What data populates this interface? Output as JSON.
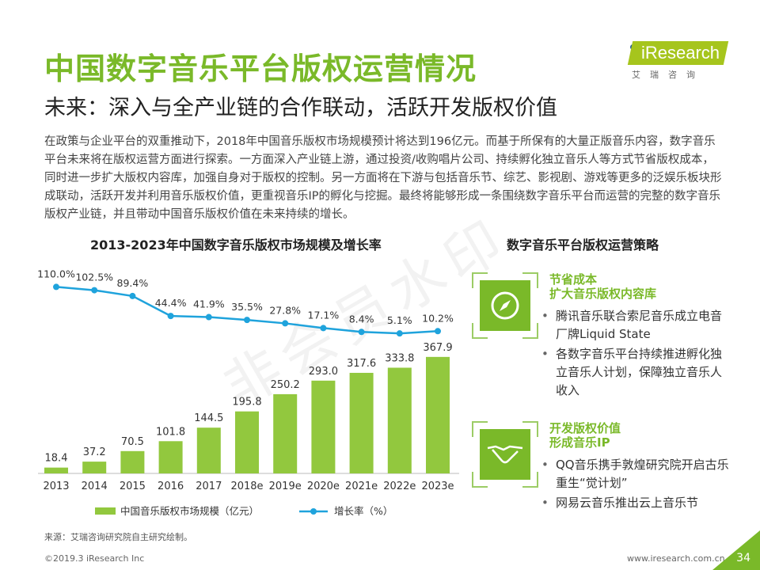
{
  "header": {
    "title": "中国数字音乐平台版权运营情况",
    "subtitle": "未来：深入与全产业链的合作联动，活跃开发版权价值"
  },
  "logo": {
    "brand": "iResearch",
    "cn": "艾瑞咨询"
  },
  "intro": "在政策与企业平台的双重推动下，2018年中国音乐版权市场规模预计将达到196亿元。而基于所保有的大量正版音乐内容，数字音乐平台未来将在版权运营方面进行探索。一方面深入产业链上游，通过投资/收购唱片公司、持续孵化独立音乐人等方式节省版权成本，同时进一步扩大版权内容库，加强自身对于版权的控制。另一方面将在下游与包括音乐节、综艺、影视剧、游戏等更多的泛娱乐板块形成联动，活跃开发并利用音乐版权价值，更重视音乐IP的孵化与挖掘。最终将能够形成一条围绕数字音乐平台而运营的完整的数字音乐版权产业链，并且带动中国音乐版权价值在未来持续的增长。",
  "watermark": "非会员水印",
  "chart_data": {
    "type": "bar+line",
    "title": "2013-2023年中国数字音乐版权市场规模及增长率",
    "categories": [
      "2013",
      "2014",
      "2015",
      "2016",
      "2017",
      "2018e",
      "2019e",
      "2020e",
      "2021e",
      "2022e",
      "2023e"
    ],
    "series": [
      {
        "name": "中国音乐版权市场规模（亿元）",
        "type": "bar",
        "color": "#92c83e",
        "values": [
          18.4,
          37.2,
          70.5,
          101.8,
          144.5,
          195.8,
          250.2,
          293.0,
          317.6,
          333.8,
          367.9
        ],
        "labels": [
          "18.4",
          "37.2",
          "70.5",
          "101.8",
          "144.5",
          "195.8",
          "250.2",
          "293.0",
          "317.6",
          "333.8",
          "367.9"
        ]
      },
      {
        "name": "增长率（%）",
        "type": "line",
        "color": "#1fa3dc",
        "values": [
          110.0,
          102.5,
          89.4,
          44.4,
          41.9,
          35.5,
          27.8,
          17.1,
          8.4,
          5.1,
          10.2
        ],
        "labels": [
          "110.0%",
          "102.5%",
          "89.4%",
          "44.4%",
          "41.9%",
          "35.5%",
          "27.8%",
          "17.1%",
          "8.4%",
          "5.1%",
          "10.2%"
        ]
      }
    ],
    "legend": "bottom",
    "grid": false
  },
  "strategy": {
    "title": "数字音乐平台版权运营策略",
    "items": [
      {
        "icon": "compass-icon",
        "head1": "节省成本",
        "head2": "扩大音乐版权内容库",
        "bullets": [
          "腾讯音乐联合索尼音乐成立电音厂牌Liquid State",
          "各数字音乐平台持续推进孵化独立音乐人计划，保障独立音乐人收入"
        ]
      },
      {
        "icon": "handshake-icon",
        "head1": "开发版权价值",
        "head2": "形成音乐IP",
        "bullets": [
          "QQ音乐携手敦煌研究院开启古乐重生“觉计划”",
          "网易云音乐推出云上音乐节"
        ]
      }
    ]
  },
  "footer": {
    "source": "来源：艾瑞咨询研究院自主研究绘制。",
    "copyright": "©2019.3 iResearch Inc",
    "url": "www.iresearch.com.cn",
    "page": "34"
  },
  "colors": {
    "accent": "#7ab929",
    "line": "#1fa3dc"
  }
}
